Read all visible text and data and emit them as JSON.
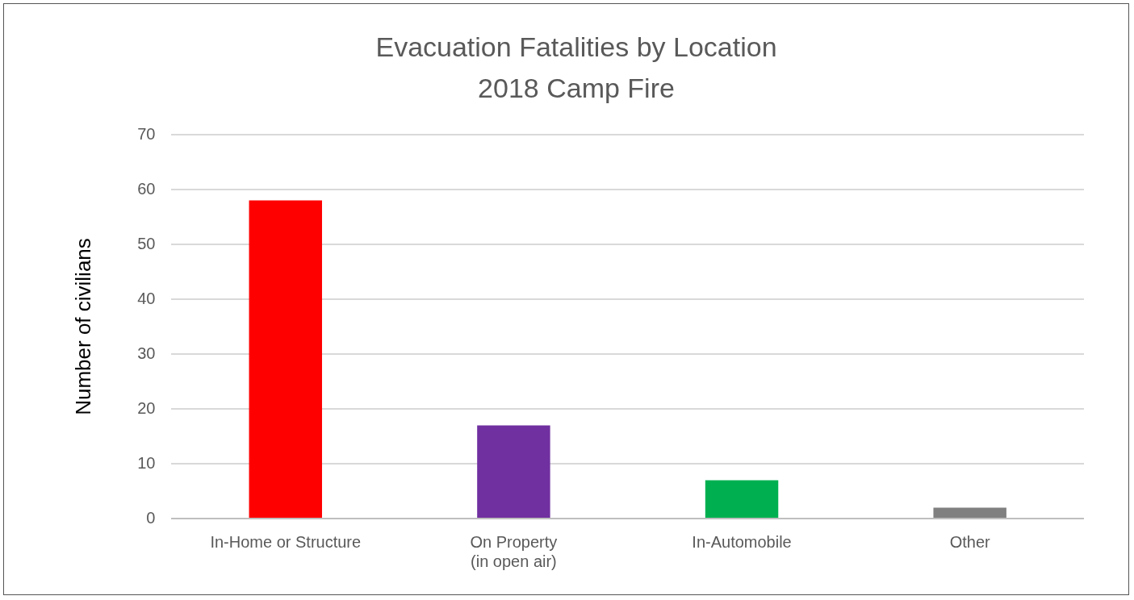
{
  "chart_data": {
    "type": "bar",
    "title": "Evacuation Fatalities by Location\n2018 Camp Fire",
    "ylabel": "Number of civilians",
    "categories": [
      "In-Home or Structure",
      "On Property\n(in open air)",
      "In-Automobile",
      "Other"
    ],
    "values": [
      58,
      17,
      7,
      2
    ],
    "colors": [
      "#ff0000",
      "#7030a0",
      "#00b050",
      "#808080"
    ],
    "ylim": [
      0,
      70
    ],
    "yticks": [
      0,
      10,
      20,
      30,
      40,
      50,
      60,
      70
    ],
    "grid": "y",
    "legend": false
  }
}
